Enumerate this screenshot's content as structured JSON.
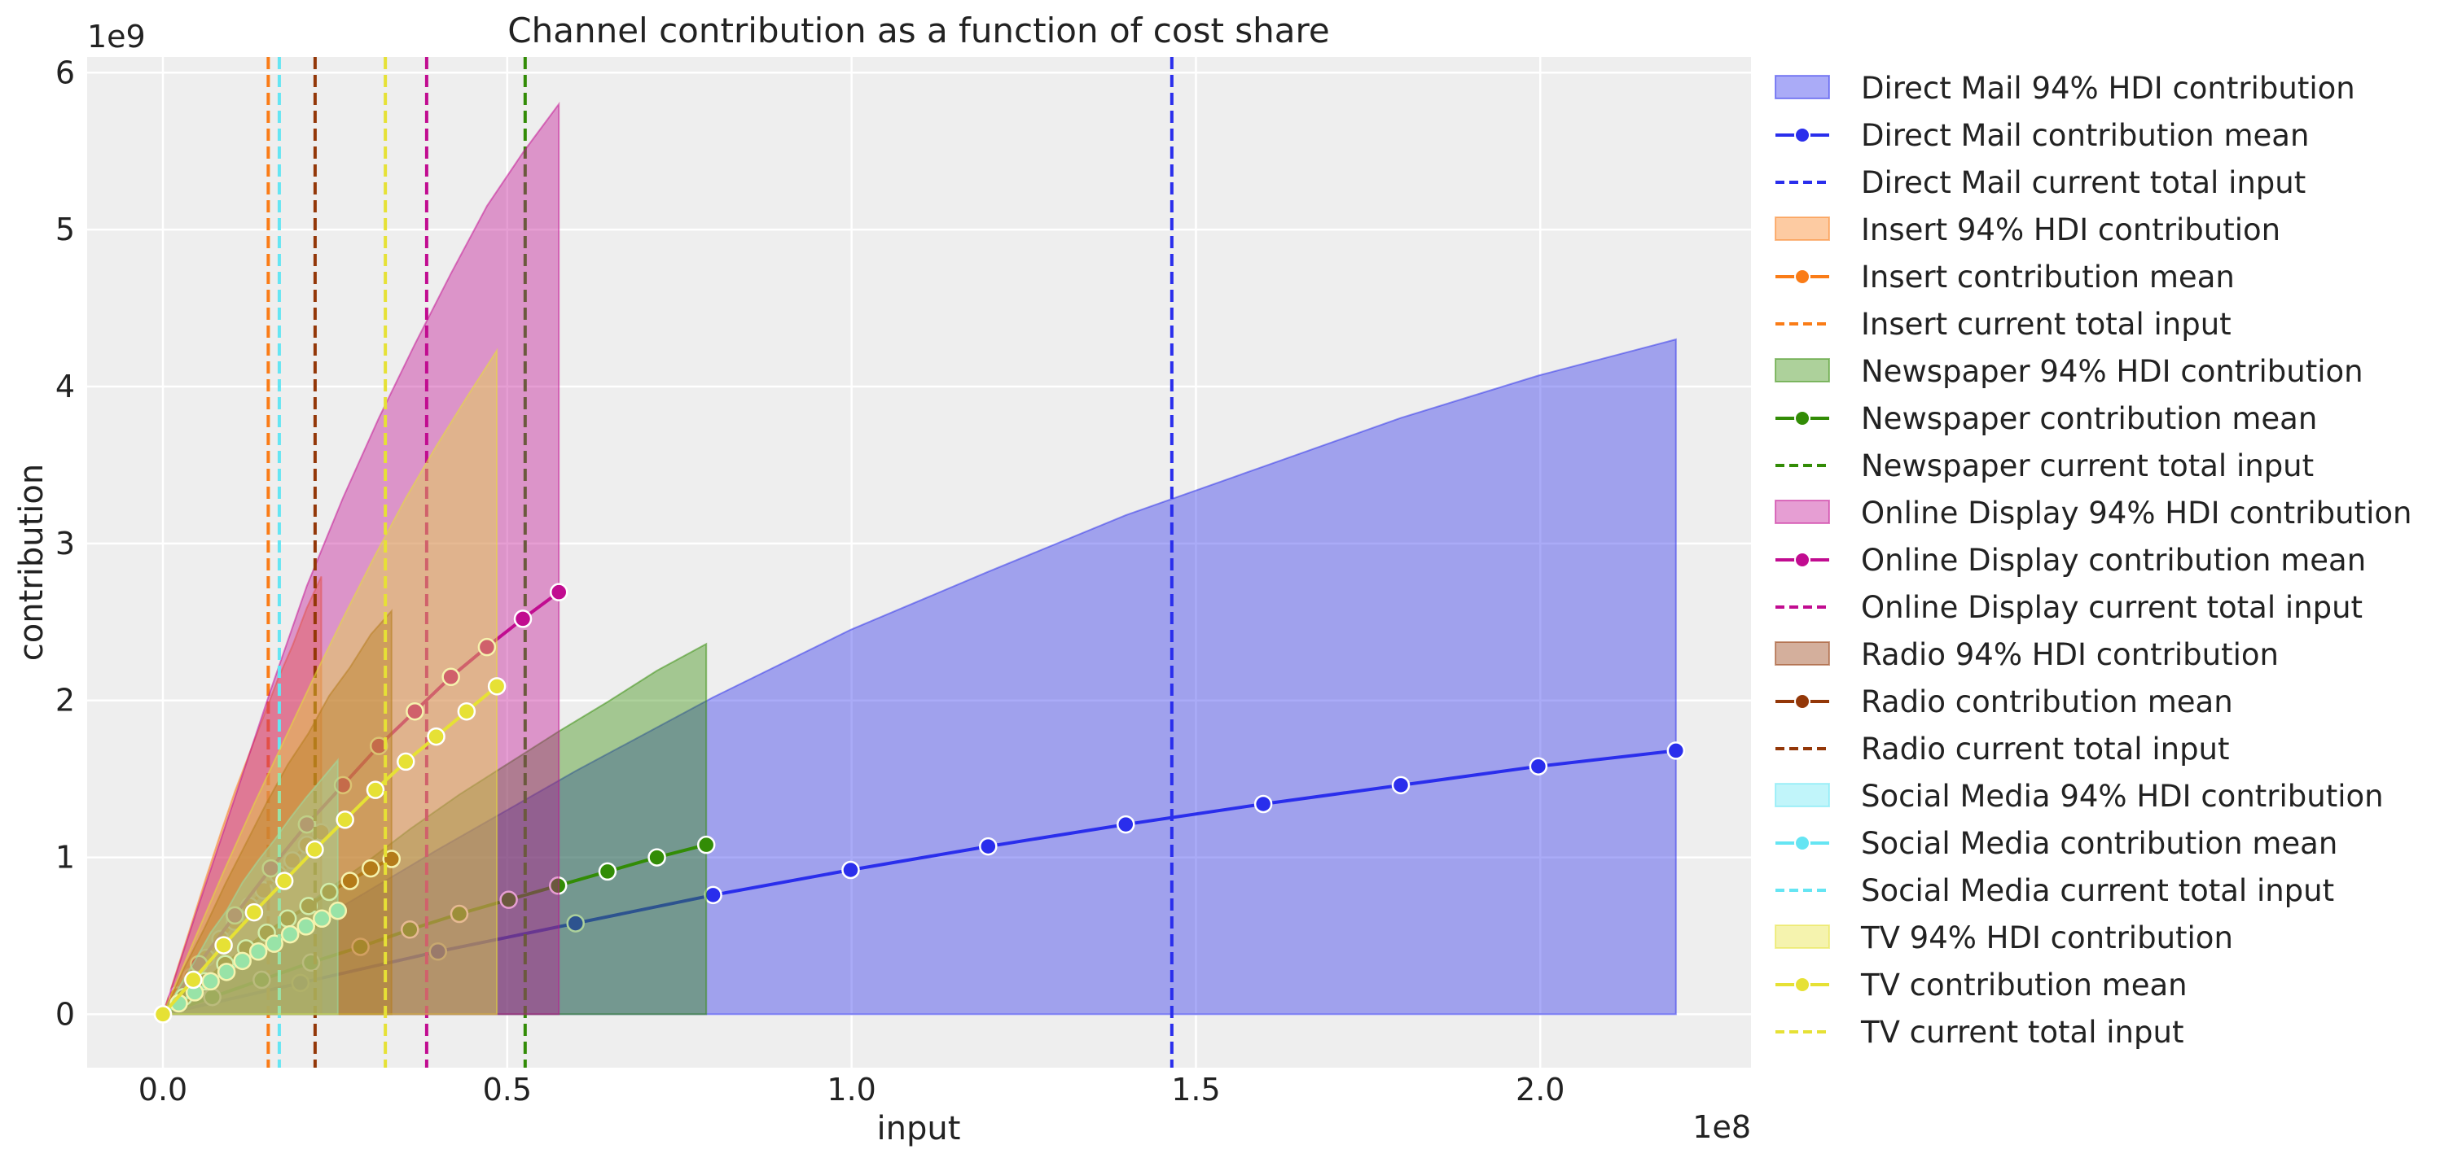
{
  "chart_data": {
    "type": "line",
    "title": "Channel contribution as a function of cost share",
    "xlabel": "input",
    "ylabel": "contribution",
    "x_offset_label": "1e8",
    "y_offset_label": "1e9",
    "xlim": [
      -11000000.0,
      230600000.0
    ],
    "ylim": [
      -340000000.0,
      6100000000.0
    ],
    "xticks": [
      {
        "value": 0,
        "label": "0.0"
      },
      {
        "value": 50000000.0,
        "label": "0.5"
      },
      {
        "value": 100000000.0,
        "label": "1.0"
      },
      {
        "value": 150000000.0,
        "label": "1.5"
      },
      {
        "value": 200000000.0,
        "label": "2.0"
      }
    ],
    "yticks": [
      {
        "value": 0,
        "label": "0"
      },
      {
        "value": 1000000000.0,
        "label": "1"
      },
      {
        "value": 2000000000.0,
        "label": "2"
      },
      {
        "value": 3000000000.0,
        "label": "3"
      },
      {
        "value": 4000000000.0,
        "label": "4"
      },
      {
        "value": 5000000000.0,
        "label": "5"
      },
      {
        "value": 6000000000.0,
        "label": "6"
      }
    ],
    "grid": true,
    "background": "#eeeeee",
    "legend_placement": "outside-right",
    "series": [
      {
        "channel": "Direct Mail",
        "color": "#2a2eec",
        "hdi_label": "Direct Mail 94% HDI contribution",
        "mean_label": "Direct Mail contribution mean",
        "input_label": "Direct Mail current total input",
        "current_total_input": 146500000.0,
        "x": [
          0,
          19970000.0,
          39940000.0,
          59920000.0,
          79890000.0,
          99860000.0,
          119830000.0,
          139810000.0,
          159780000.0,
          179750000.0,
          199720000.0,
          219700000.0
        ],
        "mean": [
          0,
          200000000.0,
          400000000.0,
          580000000.0,
          760000000.0,
          920000000.0,
          1070000000.0,
          1210000000.0,
          1340000000.0,
          1460000000.0,
          1580000000.0,
          1680000000.0
        ],
        "hdi_lower": [
          0,
          0,
          0,
          0,
          0,
          0,
          0,
          0,
          0,
          0,
          0,
          0
        ],
        "hdi_upper": [
          0,
          530000000.0,
          1050000000.0,
          1550000000.0,
          2020000000.0,
          2450000000.0,
          2820000000.0,
          3180000000.0,
          3490000000.0,
          3800000000.0,
          4070000000.0,
          4300000000.0
        ]
      },
      {
        "channel": "Insert",
        "color": "#fa7c17",
        "hdi_label": "Insert 94% HDI contribution",
        "mean_label": "Insert contribution mean",
        "input_label": "Insert current total input",
        "current_total_input": 15300000.0,
        "x": [
          0,
          2090000.0,
          4180000.0,
          6270000.0,
          8360000.0,
          10450000.0,
          12550000.0,
          14640000.0,
          16730000.0,
          18820000.0,
          20910000.0,
          23000000.0
        ],
        "mean": [
          0,
          120000000.0,
          240000000.0,
          360000000.0,
          480000000.0,
          590000000.0,
          690000000.0,
          790000000.0,
          890000000.0,
          980000000.0,
          1080000000.0,
          1160000000.0
        ],
        "hdi_lower": [
          0,
          0,
          0,
          0,
          0,
          0,
          0,
          0,
          0,
          0,
          0,
          0
        ],
        "hdi_upper": [
          0,
          290000000.0,
          580000000.0,
          870000000.0,
          1150000000.0,
          1420000000.0,
          1660000000.0,
          1900000000.0,
          2140000000.0,
          2350000000.0,
          2590000000.0,
          2790000000.0
        ]
      },
      {
        "channel": "Newspaper",
        "color": "#328c06",
        "hdi_label": "Newspaper 94% HDI contribution",
        "mean_label": "Newspaper contribution mean",
        "input_label": "Newspaper current total input",
        "current_total_input": 52600000.0,
        "x": [
          0,
          7170000.0,
          14350000.0,
          21520000.0,
          28690000.0,
          35860000.0,
          43040000.0,
          50210000.0,
          57380000.0,
          64560000.0,
          71730000.0,
          78900000.0
        ],
        "mean": [
          0,
          110000000.0,
          220000000.0,
          330000000.0,
          430000000.0,
          540000000.0,
          640000000.0,
          730000000.0,
          820000000.0,
          910000000.0,
          1000000000.0,
          1080000000.0
        ],
        "hdi_lower": [
          0,
          0,
          0,
          0,
          0,
          0,
          0,
          0,
          0,
          0,
          0,
          0
        ],
        "hdi_upper": [
          0,
          240000000.0,
          480000000.0,
          720000000.0,
          940000000.0,
          1180000000.0,
          1400000000.0,
          1600000000.0,
          1800000000.0,
          1990000000.0,
          2190000000.0,
          2360000000.0
        ]
      },
      {
        "channel": "Online Display",
        "color": "#c10c90",
        "hdi_label": "Online Display 94% HDI contribution",
        "mean_label": "Online Display contribution mean",
        "input_label": "Online Display current total input",
        "current_total_input": 38300000.0,
        "x": [
          0,
          5230000.0,
          10450000.0,
          15680000.0,
          20910000.0,
          26140000.0,
          31360000.0,
          36590000.0,
          41820000.0,
          47050000.0,
          52270000.0,
          57500000.0
        ],
        "mean": [
          0,
          320000000.0,
          630000000.0,
          930000000.0,
          1210000000.0,
          1460000000.0,
          1710000000.0,
          1930000000.0,
          2150000000.0,
          2340000000.0,
          2520000000.0,
          2690000000.0
        ],
        "hdi_lower": [
          0,
          0,
          0,
          0,
          0,
          0,
          0,
          0,
          0,
          0,
          0,
          0
        ],
        "hdi_upper": [
          0,
          700000000.0,
          1380000000.0,
          2070000000.0,
          2730000000.0,
          3290000000.0,
          3800000000.0,
          4270000000.0,
          4720000000.0,
          5150000000.0,
          5490000000.0,
          5800000000.0
        ]
      },
      {
        "channel": "Radio",
        "color": "#933708",
        "hdi_label": "Radio 94% HDI contribution",
        "mean_label": "Radio contribution mean",
        "input_label": "Radio current total input",
        "current_total_input": 22100000.0,
        "x": [
          0,
          3020000.0,
          6040000.0,
          9050000.0,
          12070000.0,
          15090000.0,
          18110000.0,
          21130000.0,
          24150000.0,
          27160000.0,
          30180000.0,
          33200000.0
        ],
        "mean": [
          0,
          110000000.0,
          210000000.0,
          320000000.0,
          420000000.0,
          520000000.0,
          610000000.0,
          690000000.0,
          780000000.0,
          850000000.0,
          930000000.0,
          990000000.0
        ],
        "hdi_lower": [
          0,
          0,
          0,
          0,
          0,
          0,
          0,
          0,
          0,
          0,
          0,
          0
        ],
        "hdi_upper": [
          0,
          290000000.0,
          550000000.0,
          830000000.0,
          1090000000.0,
          1350000000.0,
          1590000000.0,
          1790000000.0,
          2030000000.0,
          2210000000.0,
          2420000000.0,
          2570000000.0
        ]
      },
      {
        "channel": "Social Media",
        "color": "#65e5f3",
        "hdi_label": "Social Media 94% HDI contribution",
        "mean_label": "Social Media contribution mean",
        "input_label": "Social Media current total input",
        "current_total_input": 16900000.0,
        "x": [
          0,
          2310000.0,
          4620000.0,
          6930000.0,
          9240000.0,
          11550000.0,
          13850000.0,
          16160000.0,
          18470000.0,
          20780000.0,
          23090000.0,
          25400000.0
        ],
        "mean": [
          0,
          70000000.0,
          140000000.0,
          210000000.0,
          270000000.0,
          340000000.0,
          400000000.0,
          450000000.0,
          510000000.0,
          560000000.0,
          610000000.0,
          660000000.0
        ],
        "hdi_lower": [
          0,
          0,
          0,
          0,
          0,
          0,
          0,
          0,
          0,
          0,
          0,
          0
        ],
        "hdi_upper": [
          0,
          170000000.0,
          340000000.0,
          520000000.0,
          660000000.0,
          840000000.0,
          980000000.0,
          1110000000.0,
          1250000000.0,
          1380000000.0,
          1500000000.0,
          1620000000.0
        ]
      },
      {
        "channel": "TV",
        "color": "#e6e135",
        "hdi_label": "TV 94% HDI contribution",
        "mean_label": "TV contribution mean",
        "input_label": "TV current total input",
        "current_total_input": 32300000.0,
        "x": [
          0,
          4410000.0,
          8820000.0,
          13230000.0,
          17640000.0,
          22050000.0,
          26450000.0,
          30860000.0,
          35270000.0,
          39680000.0,
          44090000.0,
          48500000.0
        ],
        "mean": [
          0,
          220000000.0,
          440000000.0,
          650000000.0,
          850000000.0,
          1050000000.0,
          1240000000.0,
          1430000000.0,
          1610000000.0,
          1770000000.0,
          1930000000.0,
          2090000000.0
        ],
        "hdi_lower": [
          0,
          0,
          0,
          0,
          0,
          0,
          0,
          0,
          0,
          0,
          0,
          0
        ],
        "hdi_upper": [
          0,
          460000000.0,
          910000000.0,
          1340000000.0,
          1750000000.0,
          2160000000.0,
          2550000000.0,
          2930000000.0,
          3290000000.0,
          3620000000.0,
          3930000000.0,
          4230000000.0
        ]
      }
    ]
  }
}
